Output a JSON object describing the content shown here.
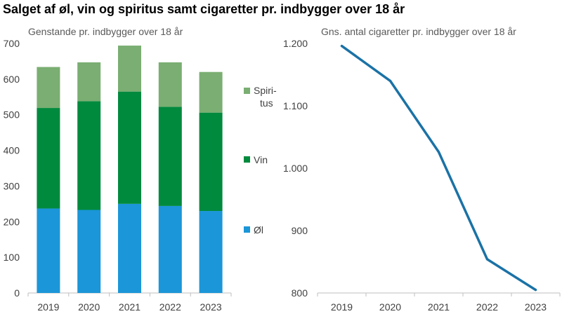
{
  "title": "Salget af øl, vin og spiritus samt cigaretter pr. indbygger over 18 år",
  "chart_data": [
    {
      "type": "bar",
      "stacked": true,
      "subtitle": "Genstande pr. indbygger over 18 år",
      "categories": [
        "2019",
        "2020",
        "2021",
        "2022",
        "2023"
      ],
      "ylim": [
        0,
        700
      ],
      "yticks": [
        0,
        100,
        200,
        300,
        400,
        500,
        600,
        700
      ],
      "ytick_labels": [
        "0",
        "100",
        "200",
        "300",
        "400",
        "500",
        "600",
        "700"
      ],
      "grid": false,
      "legend_position": "right",
      "series": [
        {
          "name": "Øl",
          "color": "#1b96d8",
          "values": [
            237,
            233,
            250,
            244,
            230
          ]
        },
        {
          "name": "Vin",
          "color": "#008a3e",
          "values": [
            282,
            305,
            315,
            278,
            276
          ]
        },
        {
          "name": "Spiri-tus",
          "legend_lines": [
            "Spiri-",
            "tus"
          ],
          "color": "#7aae72",
          "values": [
            115,
            109,
            129,
            125,
            114
          ]
        }
      ]
    },
    {
      "type": "line",
      "subtitle": "Gns. antal cigaretter pr. indbygger over 18 år",
      "x": [
        "2019",
        "2020",
        "2021",
        "2022",
        "2023"
      ],
      "ylim": [
        800,
        1200
      ],
      "yticks": [
        800,
        900,
        1000,
        1100,
        1200
      ],
      "ytick_labels": [
        "800",
        "900",
        "1.000",
        "1.100",
        "1.200"
      ],
      "grid": false,
      "series": [
        {
          "color": "#1a72a6",
          "values": [
            1196,
            1140,
            1026,
            854,
            805
          ]
        }
      ]
    }
  ]
}
